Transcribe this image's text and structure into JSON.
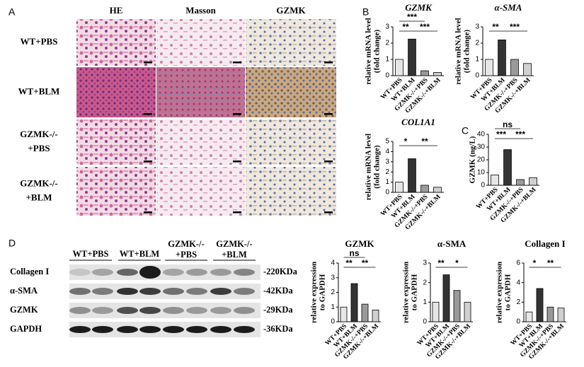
{
  "panel_labels": [
    "A",
    "B",
    "C",
    "D"
  ],
  "histology": {
    "columns": [
      "HE",
      "Masson",
      "GZMK"
    ],
    "rows": [
      [
        "WT+PBS"
      ],
      [
        "WT+BLM"
      ],
      [
        "GZMK-/-",
        "+PBS"
      ],
      [
        "GZMK-/-",
        "+BLM"
      ]
    ]
  },
  "western_blot": {
    "groups": [
      [
        "WT+PBS"
      ],
      [
        "WT+BLM"
      ],
      [
        "GZMK-/-",
        "+PBS"
      ],
      [
        "GZMK-/-",
        "+BLM"
      ]
    ],
    "proteins": [
      "Collagen I",
      "α-SMA",
      "GZMK",
      "GAPDH"
    ],
    "sizes": [
      "-220KDa",
      "-42KDa",
      "-29KDa",
      "-36KDa"
    ]
  },
  "chart_data": [
    {
      "type": "bar",
      "title": "GZMK",
      "title_italic": true,
      "ylabel": [
        "relative mRNA level",
        "(fold change)"
      ],
      "categories": [
        "WT+PBS",
        "WT+BLM",
        "GZMK-/-+PBS",
        "GZMK-/-+BLM"
      ],
      "values": [
        1.0,
        2.25,
        0.3,
        0.2
      ],
      "colors": [
        "#e6e6e6",
        "#333333",
        "#9a9a9a",
        "#d0d0d0"
      ],
      "ylim": [
        0,
        3
      ],
      "yticks": [
        0,
        1,
        2,
        3
      ],
      "annotations": [
        "***",
        "**",
        "***"
      ]
    },
    {
      "type": "bar",
      "title": "α-SMA",
      "title_italic": true,
      "ylabel": [
        "relative mRNA level",
        "(fold change)"
      ],
      "categories": [
        "WT+PBS",
        "WT+BLM",
        "GZMK-/-+PBS",
        "GZMK-/-+BLM"
      ],
      "values": [
        1.0,
        2.2,
        1.0,
        0.75
      ],
      "colors": [
        "#e6e6e6",
        "#333333",
        "#9a9a9a",
        "#d0d0d0"
      ],
      "ylim": [
        0,
        3
      ],
      "yticks": [
        0,
        1,
        2,
        3
      ],
      "annotations": [
        "**",
        "***"
      ]
    },
    {
      "type": "bar",
      "title": "COL1A1",
      "title_italic": true,
      "ylabel": [
        "relative mRNA level",
        "(fold change)"
      ],
      "categories": [
        "WT+PBS",
        "WT+BLM",
        "GZMK-/-+PBS",
        "GZMK-/-+BLM"
      ],
      "values": [
        1.0,
        3.3,
        0.7,
        0.5
      ],
      "colors": [
        "#e6e6e6",
        "#333333",
        "#9a9a9a",
        "#d0d0d0"
      ],
      "ylim": [
        0,
        5
      ],
      "yticks": [
        0,
        1,
        2,
        3,
        4,
        5
      ],
      "annotations": [
        "*",
        "**"
      ]
    },
    {
      "type": "bar",
      "ylabel": [
        "GZMK (ng/L)"
      ],
      "categories": [
        "WT+PBS",
        "WT+BLM",
        "GZMK-/-+PBS",
        "GZMK-/-+BLM"
      ],
      "values": [
        8,
        28,
        4.5,
        6
      ],
      "colors": [
        "#e6e6e6",
        "#333333",
        "#9a9a9a",
        "#d0d0d0"
      ],
      "ylim": [
        0,
        40
      ],
      "yticks": [
        0,
        10,
        20,
        30,
        40
      ],
      "annotations": [
        "ns",
        "***",
        "***"
      ]
    },
    {
      "type": "bar",
      "title": "GZMK",
      "title_italic": false,
      "ylabel": [
        "relative expression",
        "to GAPDH"
      ],
      "categories": [
        "WT+PBS",
        "WT+BLM",
        "GZMK-/-+PBS",
        "GZMK-/-+BLM"
      ],
      "values": [
        1.0,
        2.6,
        1.2,
        0.8
      ],
      "colors": [
        "#e6e6e6",
        "#333333",
        "#9a9a9a",
        "#d0d0d0"
      ],
      "ylim": [
        0,
        4
      ],
      "yticks": [
        0,
        1,
        2,
        3,
        4
      ],
      "annotations": [
        "ns",
        "**",
        "**"
      ]
    },
    {
      "type": "bar",
      "title": "α-SMA",
      "title_italic": false,
      "ylabel": [
        "relative expression",
        "to GAPDH"
      ],
      "categories": [
        "WT+PBS",
        "WT+BLM",
        "GZMK-/-+PBS",
        "GZMK-/-+BLM"
      ],
      "values": [
        1.0,
        2.4,
        1.6,
        1.0
      ],
      "colors": [
        "#e6e6e6",
        "#333333",
        "#9a9a9a",
        "#d0d0d0"
      ],
      "ylim": [
        0,
        3
      ],
      "yticks": [
        0,
        1,
        2,
        3
      ],
      "annotations": [
        "**",
        "*"
      ]
    },
    {
      "type": "bar",
      "title": "Collagen I",
      "title_italic": false,
      "ylabel": [
        "relative expression",
        "to GAPDH"
      ],
      "categories": [
        "WT+PBS",
        "WT+BLM",
        "GZMK-/-+PBS",
        "GZMK-/-+BLM"
      ],
      "values": [
        1.0,
        3.4,
        1.5,
        1.4
      ],
      "colors": [
        "#e6e6e6",
        "#333333",
        "#9a9a9a",
        "#d0d0d0"
      ],
      "ylim": [
        0,
        6
      ],
      "yticks": [
        0,
        2,
        4,
        6
      ],
      "annotations": [
        "*",
        "**"
      ]
    }
  ]
}
